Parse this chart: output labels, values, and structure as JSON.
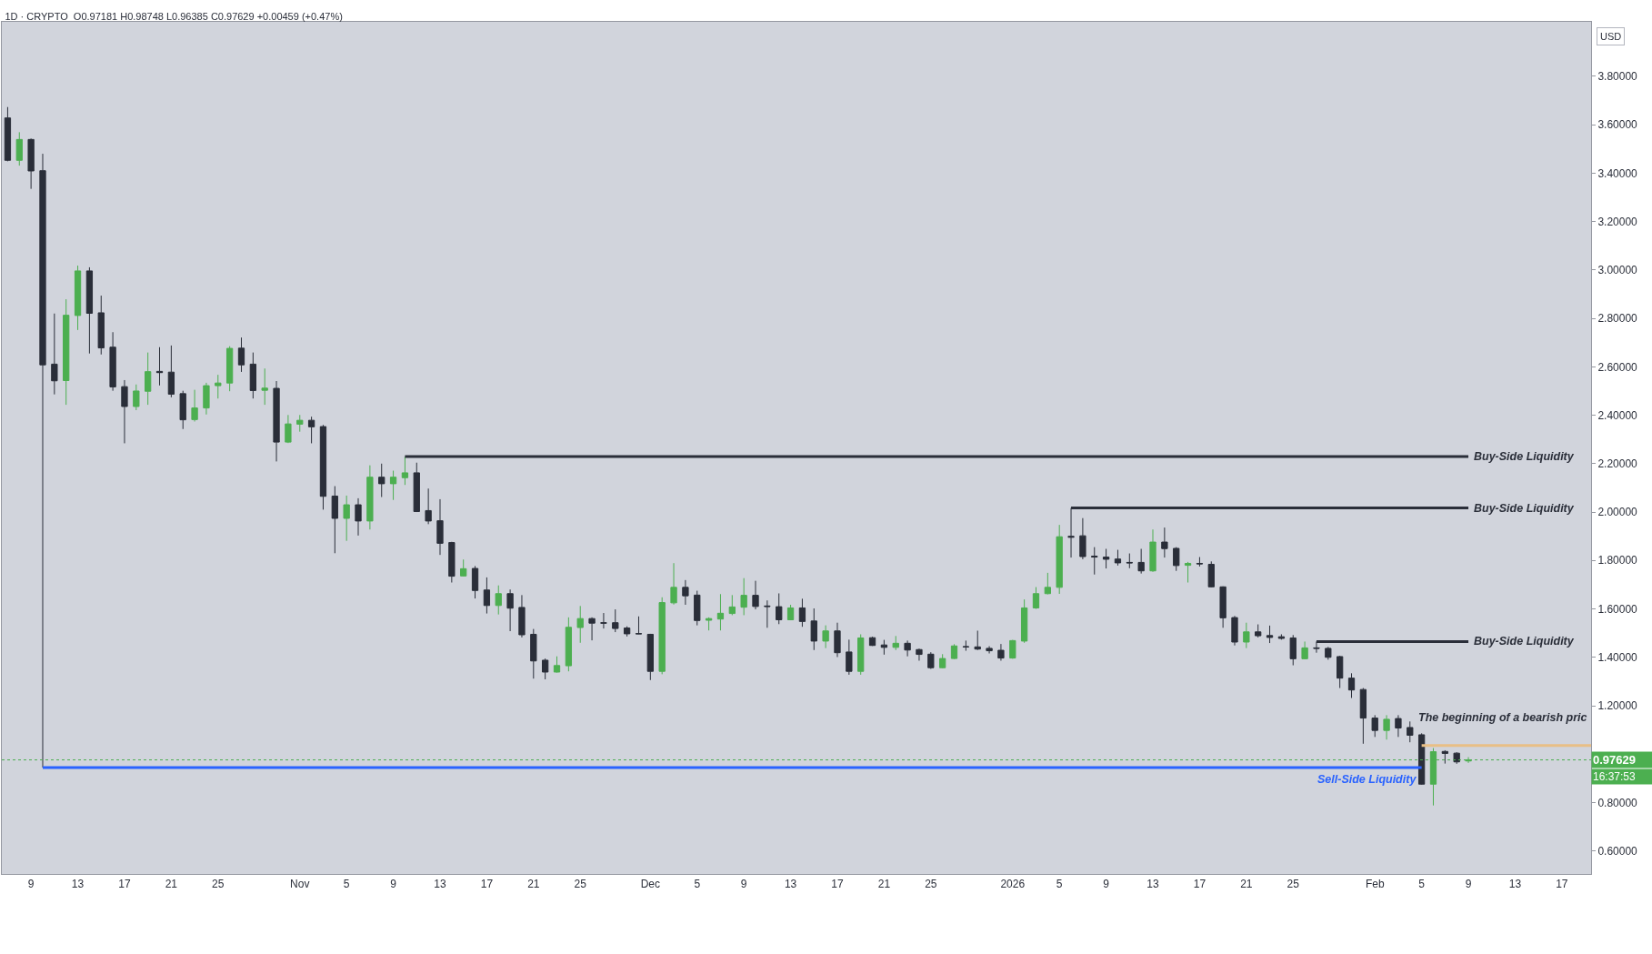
{
  "chart_data": {
    "type": "candlestick",
    "title": "1D · CRYPTO  O0.97181 H0.98748 L0.96385 C0.97629 +0.00459 (+0.47%)",
    "x": [
      "2025-10-07",
      "2025-10-08",
      "2025-10-09",
      "2025-10-10",
      "2025-10-11",
      "2025-10-12",
      "2025-10-13",
      "2025-10-14",
      "2025-10-15",
      "2025-10-16",
      "2025-10-17",
      "2025-10-18",
      "2025-10-19",
      "2025-10-20",
      "2025-10-21",
      "2025-10-22",
      "2025-10-23",
      "2025-10-24",
      "2025-10-25",
      "2025-10-26",
      "2025-10-27",
      "2025-10-28",
      "2025-10-29",
      "2025-10-30",
      "2025-10-31",
      "2025-11-01",
      "2025-11-02",
      "2025-11-03",
      "2025-11-04",
      "2025-11-05",
      "2025-11-06",
      "2025-11-07",
      "2025-11-08",
      "2025-11-09",
      "2025-11-10",
      "2025-11-11",
      "2025-11-12",
      "2025-11-13",
      "2025-11-14",
      "2025-11-15",
      "2025-11-16",
      "2025-11-17",
      "2025-11-18",
      "2025-11-19",
      "2025-11-20",
      "2025-11-21",
      "2025-11-22",
      "2025-11-23",
      "2025-11-24",
      "2025-11-25",
      "2025-11-26",
      "2025-11-27",
      "2025-11-28",
      "2025-11-29",
      "2025-11-30",
      "2025-12-01",
      "2025-12-02",
      "2025-12-03",
      "2025-12-04",
      "2025-12-05",
      "2025-12-06",
      "2025-12-07",
      "2025-12-08",
      "2025-12-09",
      "2025-12-10",
      "2025-12-11",
      "2025-12-12",
      "2025-12-13",
      "2025-12-14",
      "2025-12-15",
      "2025-12-16",
      "2025-12-17",
      "2025-12-18",
      "2025-12-19",
      "2025-12-20",
      "2025-12-21",
      "2025-12-22",
      "2025-12-23",
      "2025-12-24",
      "2025-12-25",
      "2025-12-26",
      "2025-12-27",
      "2025-12-28",
      "2025-12-29",
      "2025-12-30",
      "2025-12-31",
      "2026-01-01",
      "2026-01-02",
      "2026-01-03",
      "2026-01-04",
      "2026-01-05",
      "2026-01-06",
      "2026-01-07",
      "2026-01-08",
      "2026-01-09",
      "2026-01-10",
      "2026-01-11",
      "2026-01-12",
      "2026-01-13",
      "2026-01-14",
      "2026-01-15",
      "2026-01-16",
      "2026-01-17",
      "2026-01-18",
      "2026-01-19",
      "2026-01-20",
      "2026-01-21",
      "2026-01-22",
      "2026-01-23",
      "2026-01-24",
      "2026-01-25",
      "2026-01-26",
      "2026-01-27",
      "2026-01-28",
      "2026-01-29",
      "2026-01-30",
      "2026-01-31",
      "2026-02-01",
      "2026-02-02",
      "2026-02-03",
      "2026-02-04",
      "2026-02-05",
      "2026-02-06",
      "2026-02-07",
      "2026-02-08",
      "2026-02-09"
    ],
    "ohlc": [
      [
        3.628,
        3.673,
        3.449,
        3.453
      ],
      [
        3.453,
        3.569,
        3.431,
        3.539
      ],
      [
        3.539,
        3.543,
        3.335,
        3.409
      ],
      [
        3.41,
        3.48,
        0.945,
        2.608
      ],
      [
        2.611,
        2.82,
        2.486,
        2.542
      ],
      [
        2.543,
        2.879,
        2.443,
        2.813
      ],
      [
        2.812,
        3.018,
        2.752,
        2.996
      ],
      [
        2.996,
        3.011,
        2.655,
        2.821
      ],
      [
        2.823,
        2.894,
        2.651,
        2.678
      ],
      [
        2.681,
        2.743,
        2.501,
        2.517
      ],
      [
        2.518,
        2.545,
        2.284,
        2.436
      ],
      [
        2.436,
        2.527,
        2.421,
        2.5
      ],
      [
        2.499,
        2.659,
        2.443,
        2.58
      ],
      [
        2.581,
        2.681,
        2.523,
        2.576
      ],
      [
        2.578,
        2.688,
        2.474,
        2.487
      ],
      [
        2.489,
        2.501,
        2.343,
        2.381
      ],
      [
        2.382,
        2.505,
        2.374,
        2.43
      ],
      [
        2.43,
        2.534,
        2.403,
        2.522
      ],
      [
        2.522,
        2.567,
        2.469,
        2.533
      ],
      [
        2.533,
        2.685,
        2.499,
        2.676
      ],
      [
        2.677,
        2.721,
        2.579,
        2.608
      ],
      [
        2.611,
        2.659,
        2.469,
        2.502
      ],
      [
        2.503,
        2.593,
        2.443,
        2.512
      ],
      [
        2.511,
        2.541,
        2.209,
        2.289
      ],
      [
        2.289,
        2.401,
        2.285,
        2.364
      ],
      [
        2.363,
        2.401,
        2.332,
        2.379
      ],
      [
        2.379,
        2.394,
        2.284,
        2.352
      ],
      [
        2.353,
        2.36,
        2.01,
        2.065
      ],
      [
        2.066,
        2.107,
        1.83,
        1.974
      ],
      [
        1.974,
        2.068,
        1.881,
        2.03
      ],
      [
        2.03,
        2.057,
        1.903,
        1.963
      ],
      [
        1.963,
        2.193,
        1.928,
        2.144
      ],
      [
        2.144,
        2.2,
        2.062,
        2.117
      ],
      [
        2.117,
        2.171,
        2.05,
        2.144
      ],
      [
        2.142,
        2.229,
        2.112,
        2.162
      ],
      [
        2.162,
        2.204,
        2.0,
        2.002
      ],
      [
        2.006,
        2.097,
        1.95,
        1.963
      ],
      [
        1.964,
        2.053,
        1.823,
        1.871
      ],
      [
        1.874,
        1.877,
        1.709,
        1.735
      ],
      [
        1.736,
        1.804,
        1.734,
        1.766
      ],
      [
        1.767,
        1.777,
        1.643,
        1.676
      ],
      [
        1.678,
        1.73,
        1.581,
        1.614
      ],
      [
        1.614,
        1.697,
        1.577,
        1.663
      ],
      [
        1.663,
        1.68,
        1.508,
        1.603
      ],
      [
        1.606,
        1.657,
        1.482,
        1.493
      ],
      [
        1.495,
        1.517,
        1.312,
        1.385
      ],
      [
        1.388,
        1.395,
        1.309,
        1.339
      ],
      [
        1.339,
        1.404,
        1.337,
        1.366
      ],
      [
        1.365,
        1.565,
        1.342,
        1.524
      ],
      [
        1.523,
        1.612,
        1.46,
        1.56
      ],
      [
        1.56,
        1.565,
        1.47,
        1.541
      ],
      [
        1.543,
        1.583,
        1.519,
        1.541
      ],
      [
        1.543,
        1.598,
        1.504,
        1.519
      ],
      [
        1.521,
        1.528,
        1.486,
        1.497
      ],
      [
        1.498,
        1.569,
        1.496,
        1.497
      ],
      [
        1.495,
        1.497,
        1.306,
        1.342
      ],
      [
        1.342,
        1.648,
        1.33,
        1.626
      ],
      [
        1.625,
        1.789,
        1.618,
        1.689
      ],
      [
        1.689,
        1.719,
        1.617,
        1.654
      ],
      [
        1.657,
        1.675,
        1.532,
        1.552
      ],
      [
        1.553,
        1.565,
        1.511,
        1.56
      ],
      [
        1.558,
        1.661,
        1.511,
        1.582
      ],
      [
        1.581,
        1.657,
        1.574,
        1.608
      ],
      [
        1.607,
        1.727,
        1.574,
        1.656
      ],
      [
        1.656,
        1.716,
        1.598,
        1.61
      ],
      [
        1.612,
        1.635,
        1.522,
        1.61
      ],
      [
        1.609,
        1.664,
        1.537,
        1.555
      ],
      [
        1.555,
        1.617,
        1.553,
        1.604
      ],
      [
        1.604,
        1.642,
        1.526,
        1.548
      ],
      [
        1.55,
        1.602,
        1.43,
        1.467
      ],
      [
        1.467,
        1.532,
        1.438,
        1.509
      ],
      [
        1.509,
        1.543,
        1.401,
        1.419
      ],
      [
        1.422,
        1.473,
        1.328,
        1.342
      ],
      [
        1.342,
        1.495,
        1.328,
        1.48
      ],
      [
        1.481,
        1.485,
        1.447,
        1.449
      ],
      [
        1.451,
        1.472,
        1.411,
        1.441
      ],
      [
        1.441,
        1.488,
        1.43,
        1.458
      ],
      [
        1.458,
        1.469,
        1.404,
        1.43
      ],
      [
        1.432,
        1.436,
        1.386,
        1.412
      ],
      [
        1.413,
        1.421,
        1.352,
        1.357
      ],
      [
        1.357,
        1.413,
        1.355,
        1.395
      ],
      [
        1.395,
        1.454,
        1.393,
        1.447
      ],
      [
        1.444,
        1.469,
        1.427,
        1.443
      ],
      [
        1.443,
        1.51,
        1.43,
        1.434
      ],
      [
        1.437,
        1.446,
        1.416,
        1.427
      ],
      [
        1.429,
        1.455,
        1.386,
        1.397
      ],
      [
        1.397,
        1.472,
        1.394,
        1.469
      ],
      [
        1.467,
        1.639,
        1.46,
        1.604
      ],
      [
        1.604,
        1.69,
        1.6,
        1.663
      ],
      [
        1.663,
        1.749,
        1.66,
        1.689
      ],
      [
        1.689,
        1.947,
        1.662,
        1.898
      ],
      [
        1.9,
        2.017,
        1.812,
        1.896
      ],
      [
        1.902,
        1.975,
        1.805,
        1.816
      ],
      [
        1.818,
        1.855,
        1.742,
        1.814
      ],
      [
        1.814,
        1.848,
        1.767,
        1.805
      ],
      [
        1.806,
        1.844,
        1.779,
        1.79
      ],
      [
        1.792,
        1.829,
        1.768,
        1.79
      ],
      [
        1.792,
        1.848,
        1.746,
        1.757
      ],
      [
        1.757,
        1.928,
        1.753,
        1.876
      ],
      [
        1.876,
        1.936,
        1.812,
        1.849
      ],
      [
        1.85,
        1.855,
        1.757,
        1.779
      ],
      [
        1.78,
        1.794,
        1.709,
        1.788
      ],
      [
        1.788,
        1.814,
        1.775,
        1.786
      ],
      [
        1.784,
        1.796,
        1.689,
        1.691
      ],
      [
        1.691,
        1.693,
        1.522,
        1.563
      ],
      [
        1.564,
        1.571,
        1.449,
        1.463
      ],
      [
        1.463,
        1.543,
        1.438,
        1.505
      ],
      [
        1.505,
        1.536,
        1.482,
        1.489
      ],
      [
        1.49,
        1.531,
        1.459,
        1.482
      ],
      [
        1.485,
        1.495,
        1.473,
        1.478
      ],
      [
        1.48,
        1.492,
        1.367,
        1.394
      ],
      [
        1.394,
        1.465,
        1.392,
        1.439
      ],
      [
        1.439,
        1.465,
        1.419,
        1.437
      ],
      [
        1.437,
        1.443,
        1.39,
        1.4
      ],
      [
        1.403,
        1.406,
        1.273,
        1.314
      ],
      [
        1.314,
        1.334,
        1.232,
        1.265
      ],
      [
        1.267,
        1.273,
        1.043,
        1.149
      ],
      [
        1.149,
        1.161,
        1.071,
        1.098
      ],
      [
        1.098,
        1.161,
        1.06,
        1.144
      ],
      [
        1.147,
        1.161,
        1.071,
        1.108
      ],
      [
        1.11,
        1.135,
        1.049,
        1.078
      ],
      [
        1.08,
        1.086,
        0.874,
        0.876
      ],
      [
        0.876,
        1.025,
        0.788,
        1.01
      ],
      [
        1.011,
        1.016,
        0.961,
        1.003
      ],
      [
        1.004,
        1.008,
        0.96,
        0.968
      ],
      [
        0.97181,
        0.98748,
        0.96385,
        0.97629
      ]
    ],
    "colors": [
      "#2a2e39",
      "#4caf50",
      "#2a2e39",
      "#2a2e39",
      "#2a2e39",
      "#4caf50",
      "#4caf50",
      "#2a2e39",
      "#2a2e39",
      "#2a2e39",
      "#2a2e39",
      "#4caf50",
      "#4caf50",
      "#2a2e39",
      "#2a2e39",
      "#2a2e39",
      "#4caf50",
      "#4caf50",
      "#4caf50",
      "#4caf50",
      "#2a2e39",
      "#2a2e39",
      "#4caf50",
      "#2a2e39",
      "#4caf50",
      "#4caf50",
      "#2a2e39",
      "#2a2e39",
      "#2a2e39",
      "#4caf50",
      "#2a2e39",
      "#4caf50",
      "#2a2e39",
      "#4caf50",
      "#4caf50",
      "#2a2e39",
      "#2a2e39",
      "#2a2e39",
      "#2a2e39",
      "#4caf50",
      "#2a2e39",
      "#2a2e39",
      "#4caf50",
      "#2a2e39",
      "#2a2e39",
      "#2a2e39",
      "#2a2e39",
      "#4caf50",
      "#4caf50",
      "#4caf50",
      "#2a2e39",
      "#2a2e39",
      "#2a2e39",
      "#2a2e39",
      "#2a2e39",
      "#2a2e39",
      "#4caf50",
      "#4caf50",
      "#2a2e39",
      "#2a2e39",
      "#4caf50",
      "#4caf50",
      "#4caf50",
      "#4caf50",
      "#2a2e39",
      "#2a2e39",
      "#2a2e39",
      "#4caf50",
      "#2a2e39",
      "#2a2e39",
      "#4caf50",
      "#2a2e39",
      "#2a2e39",
      "#4caf50",
      "#2a2e39",
      "#2a2e39",
      "#4caf50",
      "#2a2e39",
      "#2a2e39",
      "#2a2e39",
      "#4caf50",
      "#4caf50",
      "#2a2e39",
      "#2a2e39",
      "#2a2e39",
      "#2a2e39",
      "#4caf50",
      "#4caf50",
      "#4caf50",
      "#4caf50",
      "#4caf50",
      "#2a2e39",
      "#2a2e39",
      "#2a2e39",
      "#2a2e39",
      "#2a2e39",
      "#2a2e39",
      "#2a2e39",
      "#4caf50",
      "#2a2e39",
      "#2a2e39",
      "#4caf50",
      "#2a2e39",
      "#2a2e39",
      "#2a2e39",
      "#2a2e39",
      "#4caf50",
      "#2a2e39",
      "#2a2e39",
      "#2a2e39",
      "#2a2e39",
      "#4caf50",
      "#2a2e39",
      "#2a2e39",
      "#2a2e39",
      "#2a2e39",
      "#2a2e39",
      "#2a2e39",
      "#4caf50",
      "#2a2e39",
      "#2a2e39",
      "#2a2e39",
      "#4caf50",
      "#2a2e39",
      "#2a2e39",
      "#4caf50"
    ],
    "series": [
      {
        "type": "line",
        "name": "Buy-Side Liquidity",
        "x": [
          "2025-11-10",
          "2026-02-09"
        ],
        "values": [
          2.229,
          2.229
        ],
        "color": "#2a2e39"
      },
      {
        "type": "line",
        "name": "Buy-Side Liquidity",
        "x": [
          "2026-01-06",
          "2026-02-09"
        ],
        "values": [
          2.017,
          2.017
        ],
        "color": "#2a2e39"
      },
      {
        "type": "line",
        "name": "Buy-Side Liquidity",
        "x": [
          "2026-01-27",
          "2026-02-09"
        ],
        "values": [
          1.465,
          1.465
        ],
        "color": "#2a2e39"
      },
      {
        "type": "line",
        "name": "Sell-Side Liquidity",
        "x": [
          "2025-10-10",
          "2026-02-05"
        ],
        "values": [
          0.945,
          0.945
        ],
        "color": "#2962ff"
      },
      {
        "type": "line",
        "x": [
          "2026-02-05",
          "2026-02-19T12:00"
        ],
        "values": [
          1.036,
          1.036
        ],
        "color": "#e8bf86"
      }
    ],
    "ref_lines": [
      {
        "axis": "y",
        "value": 0.97629,
        "label": "0.97629",
        "color": "#4caf50",
        "line_style": "dotted"
      }
    ],
    "annotations": [
      "USD",
      "16:37:53",
      "The beginning of a bearish pric"
    ],
    "xlim": [
      "2025-10-06T12:00",
      "2026-02-19T12:00"
    ],
    "xticks": [
      {
        "value": "2025-10-09",
        "label": "9"
      },
      {
        "value": "2025-10-13",
        "label": "13"
      },
      {
        "value": "2025-10-17",
        "label": "17"
      },
      {
        "value": "2025-10-21",
        "label": "21"
      },
      {
        "value": "2025-10-25",
        "label": "25"
      },
      {
        "value": "2025-11-01",
        "label": "Nov"
      },
      {
        "value": "2025-11-05",
        "label": "5"
      },
      {
        "value": "2025-11-09",
        "label": "9"
      },
      {
        "value": "2025-11-13",
        "label": "13"
      },
      {
        "value": "2025-11-17",
        "label": "17"
      },
      {
        "value": "2025-11-21",
        "label": "21"
      },
      {
        "value": "2025-11-25",
        "label": "25"
      },
      {
        "value": "2025-12-01",
        "label": "Dec"
      },
      {
        "value": "2025-12-05",
        "label": "5"
      },
      {
        "value": "2025-12-09",
        "label": "9"
      },
      {
        "value": "2025-12-13",
        "label": "13"
      },
      {
        "value": "2025-12-17",
        "label": "17"
      },
      {
        "value": "2025-12-21",
        "label": "21"
      },
      {
        "value": "2025-12-25",
        "label": "25"
      },
      {
        "value": "2026-01-01",
        "label": "2026"
      },
      {
        "value": "2026-01-05",
        "label": "5"
      },
      {
        "value": "2026-01-09",
        "label": "9"
      },
      {
        "value": "2026-01-13",
        "label": "13"
      },
      {
        "value": "2026-01-17",
        "label": "17"
      },
      {
        "value": "2026-01-21",
        "label": "21"
      },
      {
        "value": "2026-01-25",
        "label": "25"
      },
      {
        "value": "2026-02-01",
        "label": "Feb"
      },
      {
        "value": "2026-02-05",
        "label": "5"
      },
      {
        "value": "2026-02-09",
        "label": "9"
      },
      {
        "value": "2026-02-13",
        "label": "13"
      },
      {
        "value": "2026-02-17",
        "label": "17"
      }
    ],
    "ylim": [
      0.505,
      4.025
    ],
    "yticks": [
      {
        "value": 0.6,
        "label": "0.60000"
      },
      {
        "value": 0.8,
        "label": "0.80000"
      },
      {
        "value": 1.0,
        "label": null
      },
      {
        "value": 1.2,
        "label": "1.20000"
      },
      {
        "value": 1.4,
        "label": "1.40000"
      },
      {
        "value": 1.6,
        "label": "1.60000"
      },
      {
        "value": 1.8,
        "label": "1.80000"
      },
      {
        "value": 2.0,
        "label": "2.00000"
      },
      {
        "value": 2.2,
        "label": "2.20000"
      },
      {
        "value": 2.4,
        "label": "2.40000"
      },
      {
        "value": 2.6,
        "label": "2.60000"
      },
      {
        "value": 2.8,
        "label": "2.80000"
      },
      {
        "value": 3.0,
        "label": "3.00000"
      },
      {
        "value": 3.2,
        "label": "3.20000"
      },
      {
        "value": 3.4,
        "label": "3.40000"
      },
      {
        "value": 3.6,
        "label": "3.60000"
      },
      {
        "value": 3.8,
        "label": "3.80000"
      }
    ],
    "marker": "none"
  }
}
